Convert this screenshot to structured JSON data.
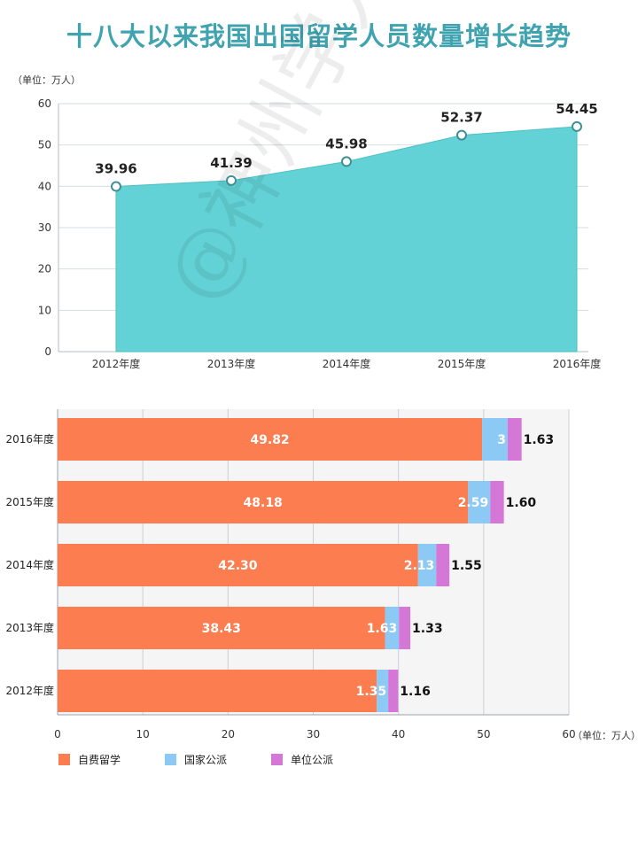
{
  "title": "十八大以来我国出国留学人员数量增长趋势",
  "watermark": "@神州学人",
  "chart_data": [
    {
      "type": "area",
      "unit_label": "（单位：万人）",
      "categories": [
        "2012年度",
        "2013年度",
        "2014年度",
        "2015年度",
        "2016年度"
      ],
      "values": [
        39.96,
        41.39,
        45.98,
        52.37,
        54.45
      ],
      "value_labels": [
        "39.96",
        "41.39",
        "45.98",
        "52.37",
        "54.45"
      ],
      "yticks": [
        "0",
        "10",
        "20",
        "30",
        "40",
        "50",
        "60"
      ],
      "ylim": [
        0,
        60
      ],
      "grid": true,
      "colors": {
        "fill": "#62d2d6",
        "line": "#4fbfc3",
        "marker": "#3f8f94"
      }
    },
    {
      "type": "bar",
      "orientation": "horizontal",
      "stacked": true,
      "unit_label": "（单位：万人）",
      "categories": [
        "2016年度",
        "2015年度",
        "2014年度",
        "2013年度",
        "2012年度"
      ],
      "series": [
        {
          "name": "自费留学",
          "values": [
            49.82,
            48.18,
            42.3,
            38.43,
            37.45
          ],
          "labels": [
            "49.82",
            "48.18",
            "42.30",
            "38.43",
            ""
          ],
          "color": "#fc7d4f"
        },
        {
          "name": "国家公派",
          "values": [
            3,
            2.59,
            2.13,
            1.63,
            1.35
          ],
          "labels": [
            "3",
            "2.59",
            "2.13",
            "1.63",
            "1.35"
          ],
          "color": "#8ccaf5"
        },
        {
          "name": "单位公派",
          "values": [
            1.63,
            1.6,
            1.55,
            1.33,
            1.16
          ],
          "labels": [
            "1.63",
            "1.60",
            "1.55",
            "1.33",
            "1.16"
          ],
          "color": "#d477d6"
        }
      ],
      "xticks": [
        "0",
        "10",
        "20",
        "30",
        "40",
        "50",
        "60"
      ],
      "xlim": [
        0,
        60
      ],
      "grid": true,
      "legend_position": "bottom-left"
    }
  ]
}
